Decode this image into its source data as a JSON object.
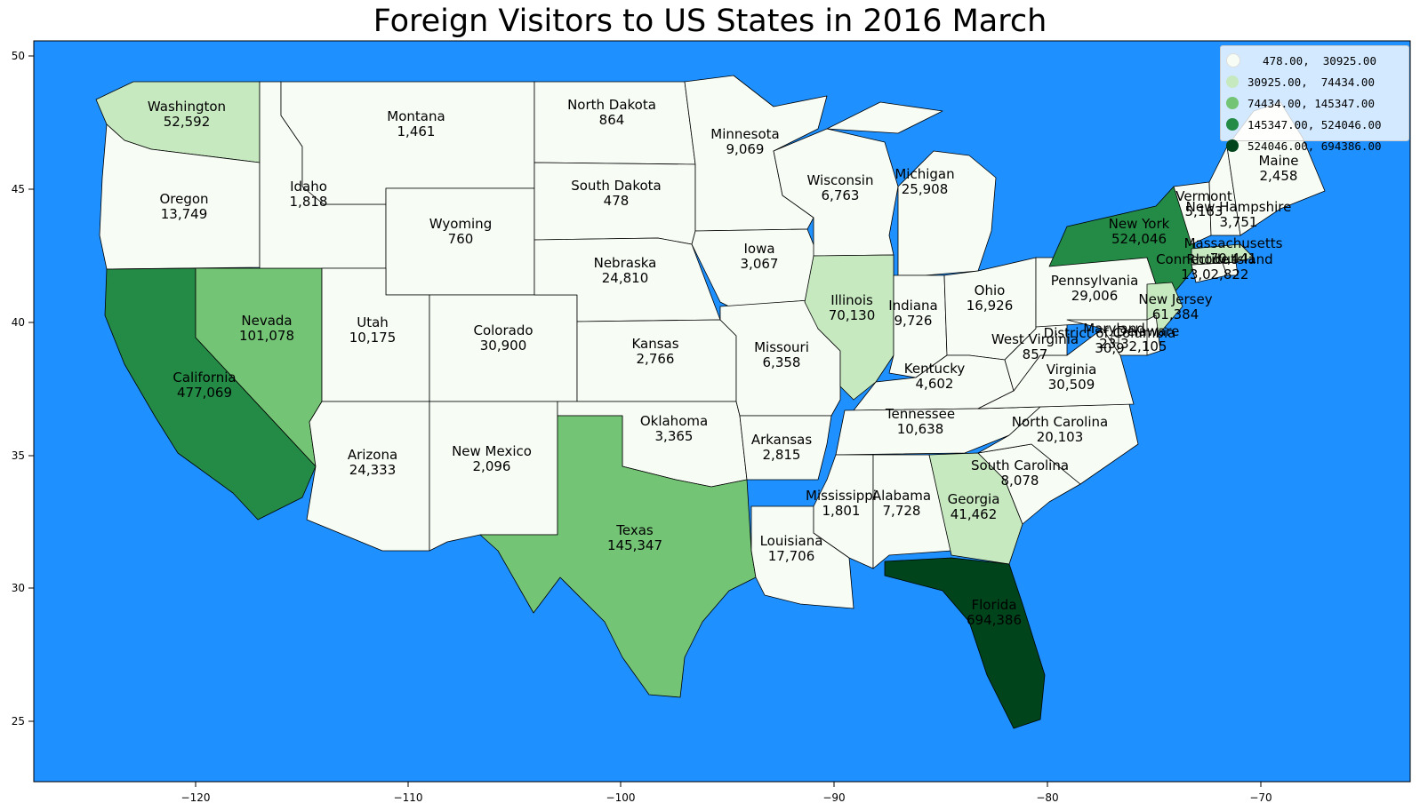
{
  "title": "Foreign Visitors to US States in 2016 March",
  "colors": {
    "ocean": "#1e90ff",
    "bins": [
      "#f7fcf5",
      "#c7e9c0",
      "#74c476",
      "#238b45",
      "#00441b"
    ]
  },
  "legend": [
    {
      "label": "  478.00,  30925.00",
      "bin": 0
    },
    {
      "label": "30925.00,  74434.00",
      "bin": 1
    },
    {
      "label": "74434.00, 145347.00",
      "bin": 2
    },
    {
      "label": "145347.00, 524046.00",
      "bin": 3
    },
    {
      "label": "524046.00, 694386.00",
      "bin": 4
    }
  ],
  "axes": {
    "x_ticks": [
      "−120",
      "−110",
      "−100",
      "−90",
      "−80",
      "−70"
    ],
    "y_ticks": [
      "50",
      "45",
      "40",
      "35",
      "30",
      "25"
    ]
  },
  "states": [
    {
      "name": "Washington",
      "value": "52,592",
      "bin": 1
    },
    {
      "name": "Oregon",
      "value": "13,749",
      "bin": 0
    },
    {
      "name": "California",
      "value": "477,069",
      "bin": 3
    },
    {
      "name": "Nevada",
      "value": "101,078",
      "bin": 2
    },
    {
      "name": "Idaho",
      "value": "1,818",
      "bin": 0
    },
    {
      "name": "Montana",
      "value": "1,461",
      "bin": 0
    },
    {
      "name": "Wyoming",
      "value": "760",
      "bin": 0
    },
    {
      "name": "Utah",
      "value": "10,175",
      "bin": 0
    },
    {
      "name": "Arizona",
      "value": "24,333",
      "bin": 0
    },
    {
      "name": "Colorado",
      "value": "30,900",
      "bin": 0
    },
    {
      "name": "New Mexico",
      "value": "2,096",
      "bin": 0
    },
    {
      "name": "North Dakota",
      "value": "864",
      "bin": 0
    },
    {
      "name": "South Dakota",
      "value": "478",
      "bin": 0
    },
    {
      "name": "Nebraska",
      "value": "24,810",
      "bin": 0
    },
    {
      "name": "Kansas",
      "value": "2,766",
      "bin": 0
    },
    {
      "name": "Oklahoma",
      "value": "3,365",
      "bin": 0
    },
    {
      "name": "Texas",
      "value": "145,347",
      "bin": 2
    },
    {
      "name": "Minnesota",
      "value": "9,069",
      "bin": 0
    },
    {
      "name": "Iowa",
      "value": "3,067",
      "bin": 0
    },
    {
      "name": "Missouri",
      "value": "6,358",
      "bin": 0
    },
    {
      "name": "Arkansas",
      "value": "2,815",
      "bin": 0
    },
    {
      "name": "Louisiana",
      "value": "17,706",
      "bin": 0
    },
    {
      "name": "Wisconsin",
      "value": "6,763",
      "bin": 0
    },
    {
      "name": "Illinois",
      "value": "70,130",
      "bin": 1
    },
    {
      "name": "Michigan",
      "value": "25,908",
      "bin": 0
    },
    {
      "name": "Indiana",
      "value": "9,726",
      "bin": 0
    },
    {
      "name": "Ohio",
      "value": "16,926",
      "bin": 0
    },
    {
      "name": "Kentucky",
      "value": "4,602",
      "bin": 0
    },
    {
      "name": "Tennessee",
      "value": "10,638",
      "bin": 0
    },
    {
      "name": "Mississippi",
      "value": "1,801",
      "bin": 0
    },
    {
      "name": "Alabama",
      "value": "7,728",
      "bin": 0
    },
    {
      "name": "Georgia",
      "value": "41,462",
      "bin": 1
    },
    {
      "name": "Florida",
      "value": "694,386",
      "bin": 4
    },
    {
      "name": "South Carolina",
      "value": "8,078",
      "bin": 0
    },
    {
      "name": "North Carolina",
      "value": "20,103",
      "bin": 0
    },
    {
      "name": "Virginia",
      "value": "30,509",
      "bin": 0
    },
    {
      "name": "West Virginia",
      "value": "857",
      "bin": 0
    },
    {
      "name": "Pennsylvania",
      "value": "29,006",
      "bin": 0
    },
    {
      "name": "New York",
      "value": "524,046",
      "bin": 3
    },
    {
      "name": "New Jersey",
      "value": "61,384",
      "bin": 1
    },
    {
      "name": "Maryland",
      "value": "23,3",
      "bin": 0
    },
    {
      "name": "Delaware",
      "value": "2,105",
      "bin": 0
    },
    {
      "name": "District of Columbia",
      "value": "30,9",
      "bin": 0
    },
    {
      "name": "Connecticut",
      "value": "13,0",
      "bin": 0
    },
    {
      "name": "Rhode Island",
      "value": "2,822",
      "bin": 0
    },
    {
      "name": "Massachusetts",
      "value": "70,441",
      "bin": 1
    },
    {
      "name": "Vermont",
      "value": "5,163",
      "bin": 0
    },
    {
      "name": "New Hampshire",
      "value": "3,751",
      "bin": 0
    },
    {
      "name": "Maine",
      "value": "2,458",
      "bin": 0
    }
  ]
}
